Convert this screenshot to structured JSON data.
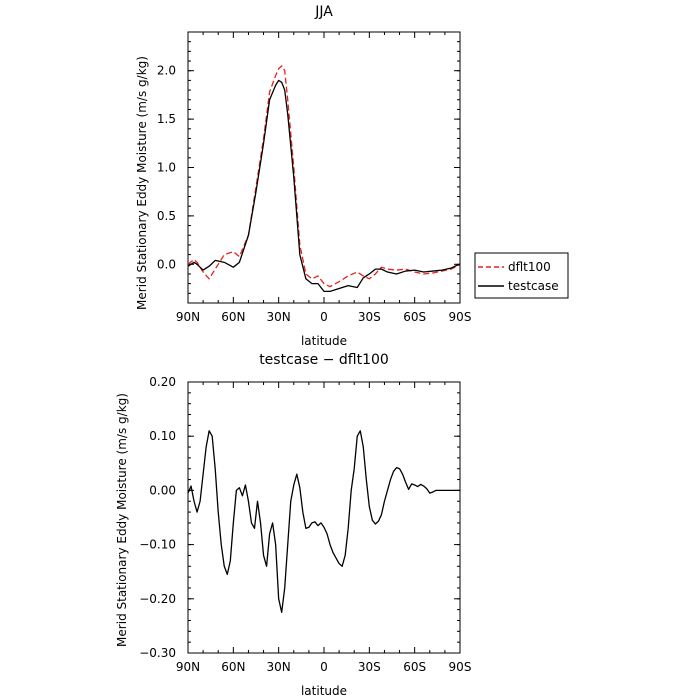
{
  "chart_data": [
    {
      "type": "line",
      "title": "JJA",
      "xlabel": "latitude",
      "ylabel": "Merid Stationary Eddy Moisture (m/s g/kg)",
      "x_tick_labels": [
        "90N",
        "60N",
        "30N",
        "0",
        "30S",
        "60S",
        "90S"
      ],
      "x_tick_values": [
        90,
        60,
        30,
        0,
        -30,
        -60,
        -90
      ],
      "xlim": [
        90,
        -90
      ],
      "ylim": [
        -0.4,
        2.4
      ],
      "y_tick_labels": [
        "0.0",
        "0.5",
        "1.0",
        "1.5",
        "2.0"
      ],
      "y_tick_values": [
        0.0,
        0.5,
        1.0,
        1.5,
        2.0
      ],
      "legend_position": "right",
      "x": [
        90,
        86,
        84,
        80,
        76,
        72,
        66,
        60,
        56,
        50,
        45,
        40,
        36,
        32,
        30,
        28,
        26,
        24,
        20,
        16,
        12,
        8,
        4,
        0,
        -4,
        -10,
        -16,
        -22,
        -26,
        -30,
        -34,
        -38,
        -42,
        -48,
        -54,
        -60,
        -66,
        -72,
        -78,
        -84,
        -88,
        -90
      ],
      "series": [
        {
          "name": "dflt100",
          "color": "#e8201c",
          "style": "dashed",
          "values": [
            0.0,
            0.05,
            0.02,
            -0.08,
            -0.15,
            -0.05,
            0.1,
            0.13,
            0.08,
            0.3,
            0.8,
            1.3,
            1.78,
            1.95,
            2.02,
            2.05,
            2.0,
            1.7,
            1.0,
            0.2,
            -0.1,
            -0.15,
            -0.12,
            -0.2,
            -0.23,
            -0.18,
            -0.12,
            -0.08,
            -0.12,
            -0.15,
            -0.1,
            -0.03,
            -0.05,
            -0.06,
            -0.05,
            -0.08,
            -0.1,
            -0.09,
            -0.07,
            -0.05,
            -0.02,
            0.0
          ]
        },
        {
          "name": "testcase",
          "color": "#000000",
          "style": "solid",
          "values": [
            -0.02,
            0.02,
            0.0,
            -0.06,
            -0.02,
            0.04,
            0.02,
            -0.03,
            0.02,
            0.3,
            0.75,
            1.25,
            1.7,
            1.85,
            1.9,
            1.88,
            1.8,
            1.55,
            0.9,
            0.1,
            -0.15,
            -0.2,
            -0.2,
            -0.28,
            -0.28,
            -0.25,
            -0.22,
            -0.24,
            -0.14,
            -0.1,
            -0.05,
            -0.05,
            -0.08,
            -0.1,
            -0.07,
            -0.06,
            -0.08,
            -0.07,
            -0.06,
            -0.04,
            -0.01,
            0.0
          ]
        }
      ]
    },
    {
      "type": "line",
      "title": "testcase − dflt100",
      "xlabel": "latitude",
      "ylabel": "Merid Stationary Eddy Moisture (m/s g/kg)",
      "x_tick_labels": [
        "90N",
        "60N",
        "30N",
        "0",
        "30S",
        "60S",
        "90S"
      ],
      "x_tick_values": [
        90,
        60,
        30,
        0,
        -30,
        -60,
        -90
      ],
      "xlim": [
        90,
        -90
      ],
      "ylim": [
        -0.3,
        0.2
      ],
      "y_tick_labels": [
        "−0.30",
        "−0.20",
        "−0.10",
        "0.00",
        "0.10",
        "0.20"
      ],
      "y_tick_values": [
        -0.3,
        -0.2,
        -0.1,
        0.0,
        0.1,
        0.2
      ],
      "x": [
        90,
        88,
        86,
        84,
        82,
        80,
        78,
        76,
        74,
        72,
        70,
        68,
        66,
        64,
        62,
        60,
        58,
        56,
        54,
        52,
        50,
        48,
        46,
        44,
        42,
        40,
        38,
        36,
        34,
        32,
        30,
        28,
        26,
        24,
        22,
        20,
        18,
        16,
        14,
        12,
        10,
        8,
        6,
        4,
        2,
        0,
        -2,
        -4,
        -6,
        -8,
        -10,
        -12,
        -14,
        -16,
        -18,
        -20,
        -22,
        -24,
        -26,
        -28,
        -30,
        -32,
        -34,
        -36,
        -38,
        -40,
        -42,
        -44,
        -46,
        -48,
        -50,
        -52,
        -54,
        -56,
        -58,
        -60,
        -62,
        -64,
        -66,
        -68,
        -70,
        -72,
        -74,
        -76,
        -78,
        -80,
        -82,
        -84,
        -86,
        -88,
        -90
      ],
      "series": [
        {
          "name": "",
          "color": "#000000",
          "style": "solid",
          "values": [
            -0.005,
            0.008,
            -0.02,
            -0.04,
            -0.02,
            0.03,
            0.08,
            0.11,
            0.1,
            0.04,
            -0.04,
            -0.1,
            -0.14,
            -0.155,
            -0.13,
            -0.06,
            0.0,
            0.005,
            -0.01,
            0.01,
            -0.02,
            -0.06,
            -0.07,
            -0.02,
            -0.06,
            -0.12,
            -0.14,
            -0.08,
            -0.06,
            -0.1,
            -0.2,
            -0.225,
            -0.18,
            -0.1,
            -0.02,
            0.01,
            0.03,
            0.005,
            -0.04,
            -0.07,
            -0.068,
            -0.06,
            -0.058,
            -0.065,
            -0.06,
            -0.068,
            -0.08,
            -0.1,
            -0.115,
            -0.125,
            -0.135,
            -0.14,
            -0.12,
            -0.07,
            0.0,
            0.04,
            0.1,
            0.11,
            0.08,
            0.02,
            -0.03,
            -0.055,
            -0.062,
            -0.057,
            -0.045,
            -0.02,
            0.0,
            0.02,
            0.035,
            0.042,
            0.04,
            0.03,
            0.015,
            0.002,
            0.012,
            0.01,
            0.007,
            0.011,
            0.008,
            0.003,
            -0.005,
            -0.003,
            0.0,
            0.0,
            0.0,
            0.0,
            0.0,
            0.0,
            0.0,
            0.0,
            0.0
          ]
        }
      ]
    }
  ]
}
